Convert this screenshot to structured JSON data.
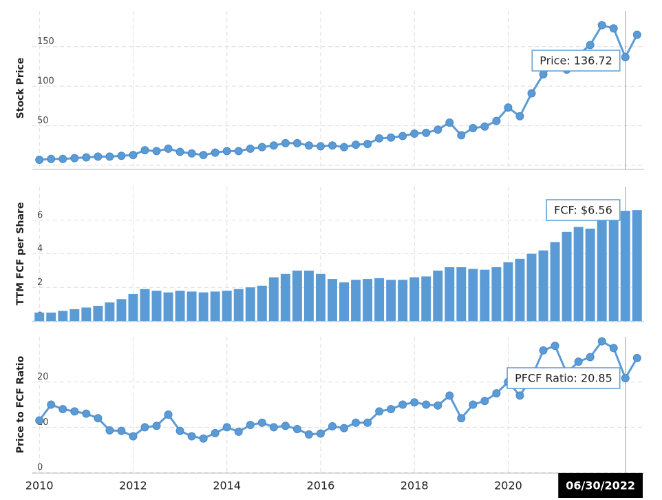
{
  "chart_data": [
    {
      "type": "line",
      "y_label": "Stock Price",
      "color": "#5b9bd5",
      "tooltip": "Price: 136.72",
      "x": [
        2010,
        2010.25,
        2010.5,
        2010.75,
        2011,
        2011.25,
        2011.5,
        2011.75,
        2012,
        2012.25,
        2012.5,
        2012.75,
        2013,
        2013.25,
        2013.5,
        2013.75,
        2014,
        2014.25,
        2014.5,
        2014.75,
        2015,
        2015.25,
        2015.5,
        2015.75,
        2016,
        2016.25,
        2016.5,
        2016.75,
        2017,
        2017.25,
        2017.5,
        2017.75,
        2018,
        2018.25,
        2018.5,
        2018.75,
        2019,
        2019.25,
        2019.5,
        2019.75,
        2020,
        2020.25,
        2020.5,
        2020.75,
        2021,
        2021.25,
        2021.5,
        2021.75,
        2022,
        2022.25,
        2022.5,
        2022.75
      ],
      "values": [
        7,
        8,
        8,
        9,
        10,
        11,
        11,
        12,
        13,
        19,
        18,
        21,
        17,
        15,
        13,
        16,
        18,
        18,
        21,
        23,
        25,
        28,
        28,
        25,
        24,
        25,
        23,
        26,
        27,
        34,
        35,
        37,
        40,
        41,
        45,
        54,
        38,
        47,
        49,
        56,
        73,
        62,
        91,
        115,
        128,
        121,
        140,
        152,
        177,
        173,
        136.72,
        165
      ],
      "xlim": [
        2009.85,
        2022.9
      ],
      "xticks": [
        2010,
        2012,
        2014,
        2016,
        2018,
        2020
      ],
      "ylim": [
        0,
        195
      ],
      "yticks": [
        0,
        50,
        100,
        150
      ],
      "grid": true
    },
    {
      "type": "bar",
      "y_label": "TTM FCF per Share",
      "color": "#5b9bd5",
      "tooltip": "FCF: $6.56",
      "x": [
        2010,
        2010.25,
        2010.5,
        2010.75,
        2011,
        2011.25,
        2011.5,
        2011.75,
        2012,
        2012.25,
        2012.5,
        2012.75,
        2013,
        2013.25,
        2013.5,
        2013.75,
        2014,
        2014.25,
        2014.5,
        2014.75,
        2015,
        2015.25,
        2015.5,
        2015.75,
        2016,
        2016.25,
        2016.5,
        2016.75,
        2017,
        2017.25,
        2017.5,
        2017.75,
        2018,
        2018.25,
        2018.5,
        2018.75,
        2019,
        2019.25,
        2019.5,
        2019.75,
        2020,
        2020.25,
        2020.5,
        2020.75,
        2021,
        2021.25,
        2021.5,
        2021.75,
        2022,
        2022.25,
        2022.5,
        2022.75
      ],
      "values": [
        0.5,
        0.5,
        0.6,
        0.7,
        0.8,
        0.9,
        1.1,
        1.3,
        1.6,
        1.9,
        1.8,
        1.7,
        1.8,
        1.75,
        1.7,
        1.75,
        1.8,
        1.9,
        2.0,
        2.1,
        2.6,
        2.8,
        3.0,
        3.0,
        2.8,
        2.5,
        2.3,
        2.45,
        2.5,
        2.55,
        2.45,
        2.45,
        2.6,
        2.65,
        3.0,
        3.2,
        3.2,
        3.1,
        3.05,
        3.2,
        3.5,
        3.7,
        4.0,
        4.2,
        4.7,
        5.3,
        5.6,
        5.5,
        6.0,
        6.2,
        6.56,
        6.6
      ],
      "xlim": [
        2009.85,
        2022.9
      ],
      "xticks": [
        2010,
        2012,
        2014,
        2016,
        2018,
        2020
      ],
      "ylim": [
        0,
        8
      ],
      "yticks": [
        0,
        2,
        4,
        6
      ],
      "grid": true
    },
    {
      "type": "line",
      "y_label": "Price to FCF Ratio",
      "color": "#5b9bd5",
      "tooltip": "PFCF Ratio: 20.85",
      "cursor_label": "06/30/2022",
      "x": [
        2010,
        2010.25,
        2010.5,
        2010.75,
        2011,
        2011.25,
        2011.5,
        2011.75,
        2012,
        2012.25,
        2012.5,
        2012.75,
        2013,
        2013.25,
        2013.5,
        2013.75,
        2014,
        2014.25,
        2014.5,
        2014.75,
        2015,
        2015.25,
        2015.5,
        2015.75,
        2016,
        2016.25,
        2016.5,
        2016.75,
        2017,
        2017.25,
        2017.5,
        2017.75,
        2018,
        2018.25,
        2018.5,
        2018.75,
        2019,
        2019.25,
        2019.5,
        2019.75,
        2020,
        2020.25,
        2020.5,
        2020.75,
        2021,
        2021.25,
        2021.5,
        2021.75,
        2022,
        2022.25,
        2022.5,
        2022.75
      ],
      "values": [
        11.5,
        15,
        14,
        13.5,
        13,
        12,
        9.3,
        9.2,
        8,
        10,
        10.3,
        12.8,
        9.2,
        8,
        7.5,
        8.7,
        10,
        9,
        10.5,
        11,
        10,
        10.3,
        9.6,
        8.4,
        8.6,
        10.2,
        9.8,
        11,
        11,
        13.5,
        14,
        15,
        15.5,
        15,
        14.8,
        17,
        12,
        15,
        15.8,
        17.5,
        20,
        17,
        21,
        27,
        28,
        22,
        24.5,
        25.5,
        29,
        27.5,
        20.85,
        25.3
      ],
      "xlim": [
        2009.85,
        2022.9
      ],
      "xticks": [
        2010,
        2012,
        2014,
        2016,
        2018,
        2020
      ],
      "ylim": [
        0,
        30
      ],
      "yticks": [
        0,
        10,
        20
      ],
      "grid": true
    }
  ]
}
